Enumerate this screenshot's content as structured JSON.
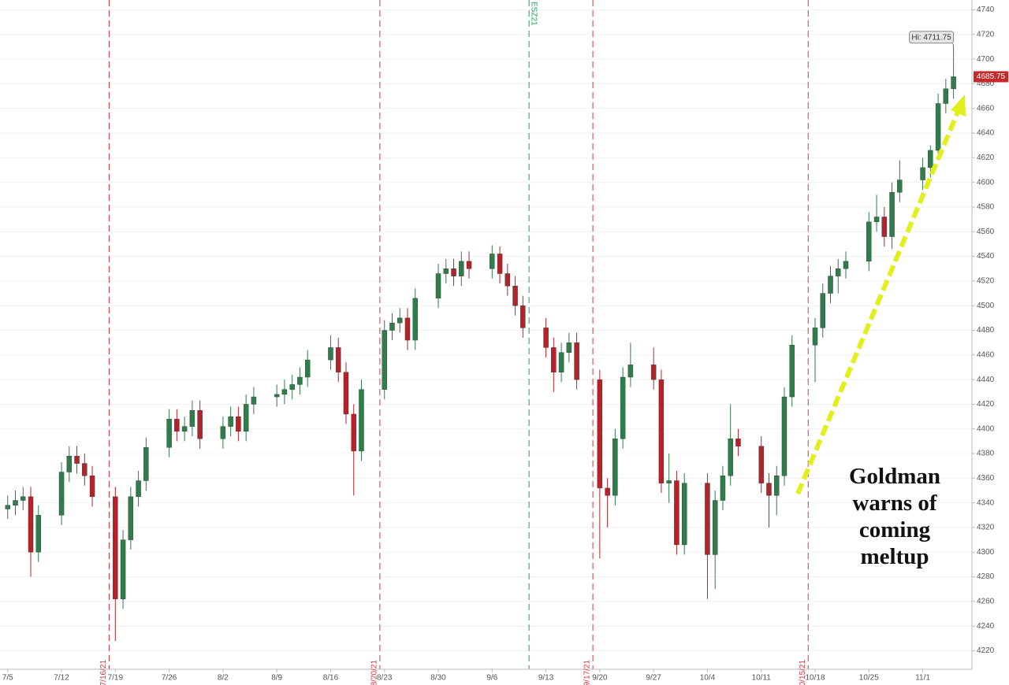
{
  "chart_data": {
    "type": "candlestick",
    "x": [
      0,
      1,
      2,
      3,
      4,
      7,
      8,
      9,
      10,
      11,
      14,
      15,
      16,
      17,
      18,
      21,
      22,
      23,
      24,
      25,
      28,
      29,
      30,
      31,
      32,
      35,
      36,
      37,
      38,
      39,
      42,
      43,
      44,
      45,
      46,
      49,
      50,
      51,
      52,
      53,
      56,
      57,
      58,
      59,
      60,
      63,
      64,
      65,
      66,
      67,
      70,
      71,
      72,
      73,
      74,
      77,
      78,
      79,
      80,
      81,
      84,
      85,
      86,
      87,
      88,
      91,
      92,
      93,
      94,
      95,
      98,
      99,
      100,
      101,
      102,
      105,
      106,
      107,
      108,
      109,
      112,
      113,
      114,
      115,
      116,
      119,
      120,
      121,
      122,
      123
    ],
    "open": [
      4335,
      4338,
      4342,
      4345,
      4300,
      4330,
      4365,
      4378,
      4372,
      4362,
      4345,
      4262,
      4310,
      4345,
      4358,
      4385,
      4408,
      4398,
      4402,
      4415,
      4392,
      4402,
      4410,
      4398,
      4420,
      4426,
      4428,
      4432,
      4436,
      4442,
      4456,
      4466,
      4446,
      4412,
      4382,
      4432,
      4480,
      4486,
      4490,
      4472,
      4506,
      4526,
      4530,
      4524,
      4536,
      4530,
      4542,
      4526,
      4516,
      4500,
      4482,
      4466,
      4446,
      4462,
      4470,
      4440,
      4352,
      4346,
      4392,
      4442,
      4452,
      4440,
      4356,
      4358,
      4306,
      4356,
      4298,
      4342,
      4362,
      4392,
      4386,
      4356,
      4346,
      4362,
      4426,
      4468,
      4482,
      4510,
      4524,
      4530,
      4536,
      4568,
      4572,
      4556,
      4592,
      4602,
      4612,
      4626,
      4664,
      4676
    ],
    "high": [
      4346,
      4350,
      4353,
      4353,
      4338,
      4373,
      4386,
      4386,
      4380,
      4370,
      4353,
      4318,
      4353,
      4366,
      4393,
      4416,
      4416,
      4410,
      4423,
      4423,
      4410,
      4418,
      4418,
      4428,
      4434,
      4436,
      4440,
      4444,
      4450,
      4464,
      4476,
      4474,
      4454,
      4420,
      4440,
      4488,
      4494,
      4498,
      4498,
      4514,
      4534,
      4538,
      4538,
      4544,
      4544,
      4549,
      4548,
      4534,
      4524,
      4508,
      4490,
      4474,
      4470,
      4478,
      4478,
      4448,
      4360,
      4400,
      4450,
      4470,
      4466,
      4448,
      4380,
      4366,
      4364,
      4364,
      4350,
      4370,
      4420,
      4400,
      4394,
      4364,
      4370,
      4434,
      4476,
      4490,
      4518,
      4532,
      4538,
      4544,
      4576,
      4590,
      4580,
      4600,
      4618,
      4620,
      4630,
      4672,
      4684,
      4711.75
    ],
    "low": [
      4327,
      4330,
      4334,
      4280,
      4292,
      4322,
      4357,
      4364,
      4354,
      4337,
      4228,
      4254,
      4302,
      4337,
      4350,
      4377,
      4390,
      4390,
      4394,
      4384,
      4384,
      4394,
      4390,
      4390,
      4412,
      4418,
      4420,
      4424,
      4428,
      4434,
      4448,
      4438,
      4404,
      4346,
      4374,
      4424,
      4472,
      4478,
      4464,
      4464,
      4498,
      4518,
      4516,
      4516,
      4522,
      4522,
      4518,
      4508,
      4492,
      4474,
      4458,
      4430,
      4438,
      4454,
      4432,
      4295,
      4320,
      4338,
      4384,
      4434,
      4432,
      4348,
      4340,
      4298,
      4298,
      4262,
      4270,
      4334,
      4354,
      4378,
      4348,
      4320,
      4330,
      4354,
      4418,
      4438,
      4474,
      4502,
      4510,
      4522,
      4528,
      4560,
      4548,
      4546,
      4584,
      4594,
      4604,
      4618,
      4656,
      4668
    ],
    "close": [
      4338,
      4342,
      4345,
      4300,
      4330,
      4365,
      4378,
      4372,
      4362,
      4345,
      4262,
      4310,
      4345,
      4358,
      4385,
      4408,
      4398,
      4402,
      4415,
      4392,
      4402,
      4410,
      4398,
      4420,
      4426,
      4428,
      4432,
      4436,
      4442,
      4456,
      4466,
      4446,
      4412,
      4382,
      4432,
      4480,
      4486,
      4490,
      4472,
      4506,
      4526,
      4530,
      4524,
      4536,
      4530,
      4542,
      4526,
      4516,
      4500,
      4482,
      4466,
      4446,
      4462,
      4470,
      4440,
      4352,
      4346,
      4392,
      4442,
      4452,
      4440,
      4356,
      4358,
      4306,
      4356,
      4298,
      4342,
      4362,
      4392,
      4386,
      4356,
      4346,
      4362,
      4426,
      4468,
      4482,
      4510,
      4524,
      4530,
      4536,
      4568,
      4572,
      4556,
      4592,
      4602,
      4612,
      4626,
      4664,
      4676,
      4685.75
    ],
    "up_color": "#2e7d4a",
    "down_color": "#b5232a",
    "xlim": [
      -1,
      125.4
    ],
    "xticks": [
      {
        "value": 0,
        "label": "7/5"
      },
      {
        "value": 7,
        "label": "7/12"
      },
      {
        "value": 14,
        "label": "7/19"
      },
      {
        "value": 21,
        "label": "7/26"
      },
      {
        "value": 28,
        "label": "8/2"
      },
      {
        "value": 35,
        "label": "8/9"
      },
      {
        "value": 42,
        "label": "8/16"
      },
      {
        "value": 49,
        "label": "8/23"
      },
      {
        "value": 56,
        "label": "8/30"
      },
      {
        "value": 63,
        "label": "9/6"
      },
      {
        "value": 70,
        "label": "9/13"
      },
      {
        "value": 77,
        "label": "9/20"
      },
      {
        "value": 84,
        "label": "9/27"
      },
      {
        "value": 91,
        "label": "10/4"
      },
      {
        "value": 98,
        "label": "10/11"
      },
      {
        "value": 105,
        "label": "10/18"
      },
      {
        "value": 112,
        "label": "10/25"
      },
      {
        "value": 119,
        "label": "11/1"
      }
    ],
    "ylim": [
      4205,
      4748
    ],
    "yticks": [
      4220,
      4240,
      4260,
      4280,
      4300,
      4320,
      4340,
      4360,
      4380,
      4400,
      4420,
      4440,
      4460,
      4480,
      4500,
      4520,
      4540,
      4560,
      4580,
      4600,
      4620,
      4640,
      4660,
      4680,
      4700,
      4720,
      4740
    ],
    "grid": true,
    "vlines": [
      {
        "x": 13.2,
        "label": "7/16/21",
        "color": "#d9363e"
      },
      {
        "x": 48.4,
        "label": "8/20/21",
        "color": "#d9363e"
      },
      {
        "x": 67.8,
        "label": "ESZ21",
        "color": "#1f9d55"
      },
      {
        "x": 76.1,
        "label": "9/17/21",
        "color": "#d9363e"
      },
      {
        "x": 104.1,
        "label": "10/15/21",
        "color": "#d9363e"
      }
    ],
    "high_price": {
      "value": 4711.75,
      "label": "Hi: 4711.75"
    },
    "last_price": 4685.75,
    "annotation": "Goldman warns of coming meltup"
  }
}
